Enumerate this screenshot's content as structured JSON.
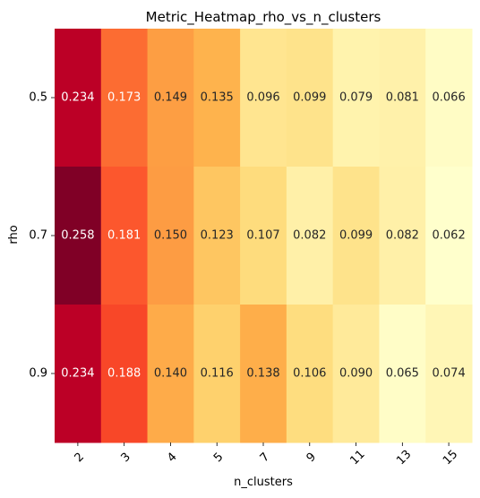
{
  "chart_data": {
    "type": "heatmap",
    "title": "Metric_Heatmap_rho_vs_n_clusters",
    "xlabel": "n_clusters",
    "ylabel": "rho",
    "x_categories": [
      "2",
      "3",
      "4",
      "5",
      "7",
      "9",
      "11",
      "13",
      "15"
    ],
    "y_categories": [
      "0.5",
      "0.7",
      "0.9"
    ],
    "values": [
      [
        0.234,
        0.173,
        0.149,
        0.135,
        0.096,
        0.099,
        0.079,
        0.081,
        0.066
      ],
      [
        0.258,
        0.181,
        0.15,
        0.123,
        0.107,
        0.082,
        0.099,
        0.082,
        0.062
      ],
      [
        0.234,
        0.188,
        0.14,
        0.116,
        0.138,
        0.106,
        0.09,
        0.065,
        0.074
      ]
    ],
    "value_labels": [
      [
        "0.234",
        "0.173",
        "0.149",
        "0.135",
        "0.096",
        "0.099",
        "0.079",
        "0.081",
        "0.066"
      ],
      [
        "0.258",
        "0.181",
        "0.150",
        "0.123",
        "0.107",
        "0.082",
        "0.099",
        "0.082",
        "0.062"
      ],
      [
        "0.234",
        "0.188",
        "0.140",
        "0.116",
        "0.138",
        "0.106",
        "0.090",
        "0.065",
        "0.074"
      ]
    ],
    "colormap": "YlOrRd",
    "colorbar": false,
    "grid": false,
    "x_tick_rotation": 45
  }
}
